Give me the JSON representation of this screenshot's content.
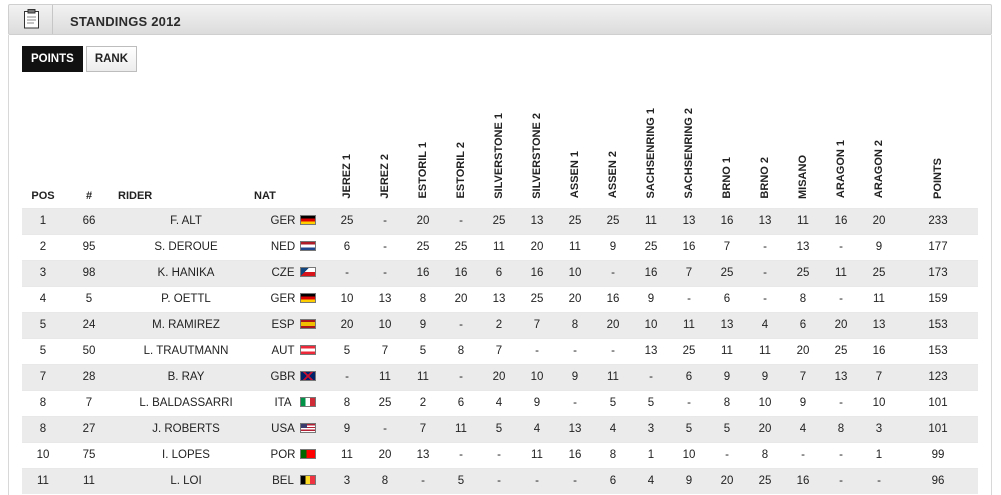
{
  "header": {
    "title": "STANDINGS 2012",
    "icon": "clipboard-icon"
  },
  "tabs": [
    {
      "label": "POINTS",
      "active": true
    },
    {
      "label": "RANK",
      "active": false
    }
  ],
  "columns": {
    "pos": "POS",
    "num": "#",
    "rider": "RIDER",
    "nat": "NAT",
    "races": [
      "JEREZ 1",
      "JEREZ 2",
      "ESTORIL 1",
      "ESTORIL 2",
      "SILVERSTONE 1",
      "SILVERSTONE 2",
      "ASSEN 1",
      "ASSEN 2",
      "SACHSENRING 1",
      "SACHSENRING 2",
      "BRNO 1",
      "BRNO 2",
      "MISANO",
      "ARAGON 1",
      "ARAGON 2"
    ],
    "points": "POINTS"
  },
  "rows": [
    {
      "pos": "1",
      "num": "66",
      "rider": "F. ALT",
      "nat": "GER",
      "flag": "ger",
      "results": [
        "25",
        "-",
        "20",
        "-",
        "25",
        "13",
        "25",
        "25",
        "11",
        "13",
        "16",
        "13",
        "11",
        "16",
        "20"
      ],
      "points": "233"
    },
    {
      "pos": "2",
      "num": "95",
      "rider": "S. DEROUE",
      "nat": "NED",
      "flag": "ned",
      "results": [
        "6",
        "-",
        "25",
        "25",
        "11",
        "20",
        "11",
        "9",
        "25",
        "16",
        "7",
        "-",
        "13",
        "-",
        "9"
      ],
      "points": "177"
    },
    {
      "pos": "3",
      "num": "98",
      "rider": "K. HANIKA",
      "nat": "CZE",
      "flag": "cze",
      "results": [
        "-",
        "-",
        "16",
        "16",
        "6",
        "16",
        "10",
        "-",
        "16",
        "7",
        "25",
        "-",
        "25",
        "11",
        "25"
      ],
      "points": "173"
    },
    {
      "pos": "4",
      "num": "5",
      "rider": "P. OETTL",
      "nat": "GER",
      "flag": "ger",
      "results": [
        "10",
        "13",
        "8",
        "20",
        "13",
        "25",
        "20",
        "16",
        "9",
        "-",
        "6",
        "-",
        "8",
        "-",
        "11"
      ],
      "points": "159"
    },
    {
      "pos": "5",
      "num": "24",
      "rider": "M. RAMIREZ",
      "nat": "ESP",
      "flag": "esp",
      "results": [
        "20",
        "10",
        "9",
        "-",
        "2",
        "7",
        "8",
        "20",
        "10",
        "11",
        "13",
        "4",
        "6",
        "20",
        "13"
      ],
      "points": "153"
    },
    {
      "pos": "5",
      "num": "50",
      "rider": "L. TRAUTMANN",
      "nat": "AUT",
      "flag": "aut",
      "results": [
        "5",
        "7",
        "5",
        "8",
        "7",
        "-",
        "-",
        "-",
        "13",
        "25",
        "11",
        "11",
        "20",
        "25",
        "16"
      ],
      "points": "153"
    },
    {
      "pos": "7",
      "num": "28",
      "rider": "B. RAY",
      "nat": "GBR",
      "flag": "gbr",
      "results": [
        "-",
        "11",
        "11",
        "-",
        "20",
        "10",
        "9",
        "11",
        "-",
        "6",
        "9",
        "9",
        "7",
        "13",
        "7"
      ],
      "points": "123"
    },
    {
      "pos": "8",
      "num": "7",
      "rider": "L. BALDASSARRI",
      "nat": "ITA",
      "flag": "ita",
      "results": [
        "8",
        "25",
        "2",
        "6",
        "4",
        "9",
        "-",
        "5",
        "5",
        "-",
        "8",
        "10",
        "9",
        "-",
        "10"
      ],
      "points": "101"
    },
    {
      "pos": "8",
      "num": "27",
      "rider": "J. ROBERTS",
      "nat": "USA",
      "flag": "usa",
      "results": [
        "9",
        "-",
        "7",
        "11",
        "5",
        "4",
        "13",
        "4",
        "3",
        "5",
        "5",
        "20",
        "4",
        "8",
        "3"
      ],
      "points": "101"
    },
    {
      "pos": "10",
      "num": "75",
      "rider": "I. LOPES",
      "nat": "POR",
      "flag": "por",
      "results": [
        "11",
        "20",
        "13",
        "-",
        "-",
        "11",
        "16",
        "8",
        "1",
        "10",
        "-",
        "8",
        "-",
        "-",
        "1"
      ],
      "points": "99"
    },
    {
      "pos": "11",
      "num": "11",
      "rider": "L. LOI",
      "nat": "BEL",
      "flag": "bel",
      "results": [
        "3",
        "8",
        "-",
        "5",
        "-",
        "-",
        "-",
        "6",
        "4",
        "9",
        "20",
        "25",
        "16",
        "-",
        "-"
      ],
      "points": "96"
    }
  ]
}
